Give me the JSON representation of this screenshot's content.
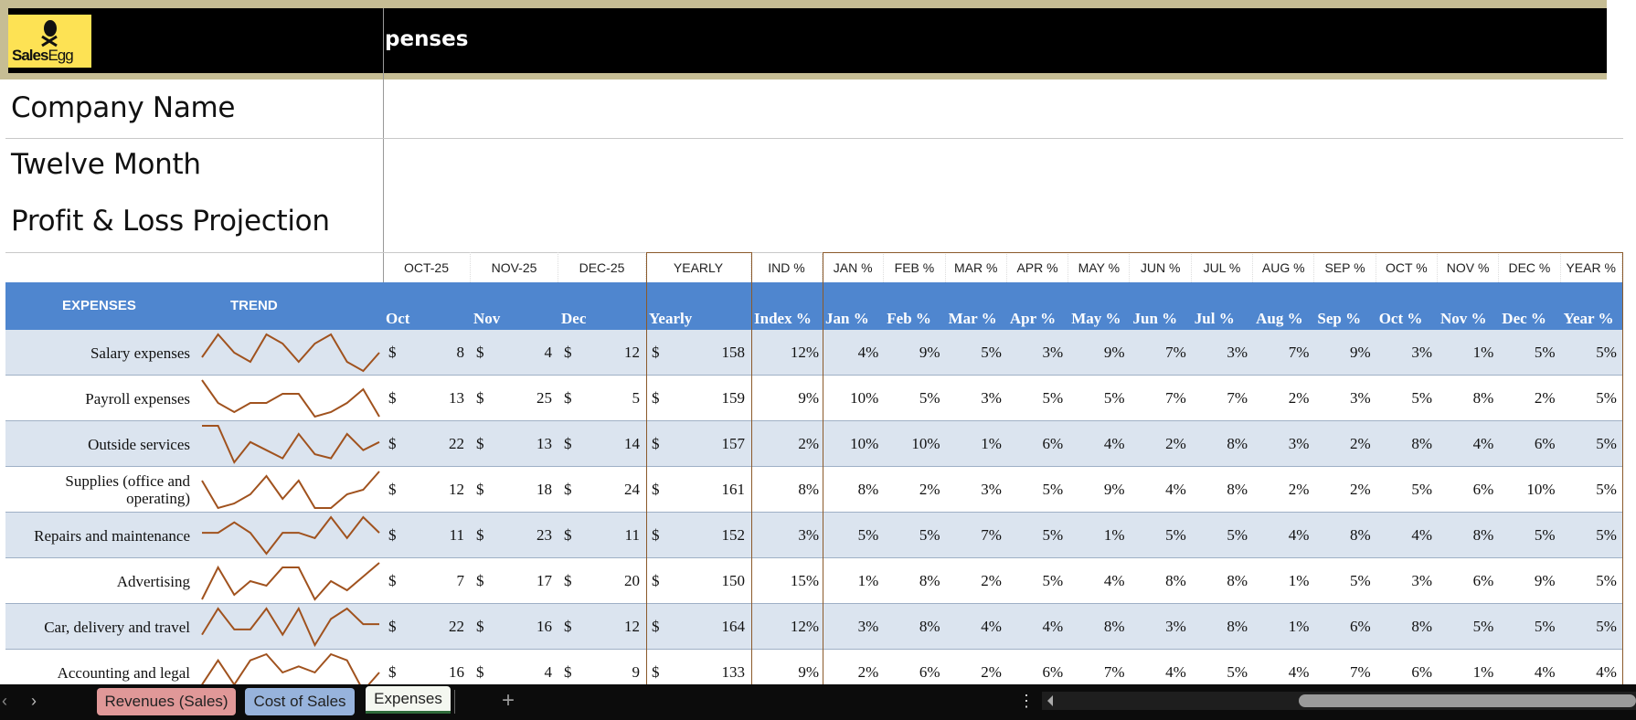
{
  "header": {
    "logo_text": "SalesEgg",
    "sheet_title": "penses",
    "company": "Company Name",
    "line2": "Twelve Month",
    "line3": "Profit & Loss Projection"
  },
  "date_headers": [
    "OCT-25",
    "NOV-25",
    "DEC-25",
    "YEARLY",
    "IND %",
    "JAN %",
    "FEB %",
    "MAR %",
    "APR %",
    "MAY %",
    "JUN %",
    "JUL %",
    "AUG %",
    "SEP %",
    "OCT %",
    "NOV %",
    "DEC %",
    "YEAR %"
  ],
  "columns": {
    "expenses": "EXPENSES",
    "trend": "TREND",
    "labels": [
      "Oct",
      "Nov",
      "Dec",
      "Yearly",
      "Index %",
      "Jan %",
      "Feb %",
      "Mar %",
      "Apr %",
      "May %",
      "Jun %",
      "Jul %",
      "Aug %",
      "Sep %",
      "Oct %",
      "Nov %",
      "Dec %",
      "Year %"
    ]
  },
  "currency": "$",
  "colors": {
    "header_blue": "#4f86cf",
    "row_alt": "#dbe4ef",
    "sparkline": "#a0521e",
    "accent_border": "#8b5a2b"
  },
  "rows": [
    {
      "label": "Salary expenses",
      "oct": "8",
      "nov": "4",
      "dec": "12",
      "yearly": "158",
      "index": "12%",
      "pct": [
        "4%",
        "9%",
        "5%",
        "3%",
        "9%",
        "7%",
        "3%",
        "7%",
        "9%",
        "3%",
        "1%",
        "5%",
        "5%"
      ]
    },
    {
      "label": "Payroll expenses",
      "oct": "13",
      "nov": "25",
      "dec": "5",
      "yearly": "159",
      "index": "9%",
      "pct": [
        "10%",
        "5%",
        "3%",
        "5%",
        "5%",
        "7%",
        "7%",
        "2%",
        "3%",
        "5%",
        "8%",
        "2%",
        "5%"
      ]
    },
    {
      "label": "Outside services",
      "oct": "22",
      "nov": "13",
      "dec": "14",
      "yearly": "157",
      "index": "2%",
      "pct": [
        "10%",
        "10%",
        "1%",
        "6%",
        "4%",
        "2%",
        "8%",
        "3%",
        "2%",
        "8%",
        "4%",
        "6%",
        "5%"
      ]
    },
    {
      "label": "Supplies (office and operating)",
      "oct": "12",
      "nov": "18",
      "dec": "24",
      "yearly": "161",
      "index": "8%",
      "pct": [
        "8%",
        "2%",
        "3%",
        "5%",
        "9%",
        "4%",
        "8%",
        "2%",
        "2%",
        "5%",
        "6%",
        "10%",
        "5%"
      ]
    },
    {
      "label": "Repairs and maintenance",
      "oct": "11",
      "nov": "23",
      "dec": "11",
      "yearly": "152",
      "index": "3%",
      "pct": [
        "5%",
        "5%",
        "7%",
        "5%",
        "1%",
        "5%",
        "5%",
        "4%",
        "8%",
        "4%",
        "8%",
        "5%",
        "5%"
      ]
    },
    {
      "label": "Advertising",
      "oct": "7",
      "nov": "17",
      "dec": "20",
      "yearly": "150",
      "index": "15%",
      "pct": [
        "1%",
        "8%",
        "2%",
        "5%",
        "4%",
        "8%",
        "8%",
        "1%",
        "5%",
        "3%",
        "6%",
        "9%",
        "5%"
      ]
    },
    {
      "label": "Car, delivery and travel",
      "oct": "22",
      "nov": "16",
      "dec": "12",
      "yearly": "164",
      "index": "12%",
      "pct": [
        "3%",
        "8%",
        "4%",
        "4%",
        "8%",
        "3%",
        "8%",
        "1%",
        "6%",
        "8%",
        "5%",
        "5%",
        "5%"
      ]
    },
    {
      "label": "Accounting and legal",
      "oct": "16",
      "nov": "4",
      "dec": "9",
      "yearly": "133",
      "index": "9%",
      "pct": [
        "2%",
        "6%",
        "2%",
        "6%",
        "7%",
        "4%",
        "5%",
        "4%",
        "7%",
        "6%",
        "1%",
        "4%",
        "4%"
      ]
    }
  ],
  "tabs": [
    {
      "label": "Revenues (Sales)"
    },
    {
      "label": "Cost of Sales"
    },
    {
      "label": "Expenses"
    }
  ],
  "tabbar": {
    "prev": "‹",
    "next": "›",
    "add": "+",
    "more": "⋮"
  }
}
